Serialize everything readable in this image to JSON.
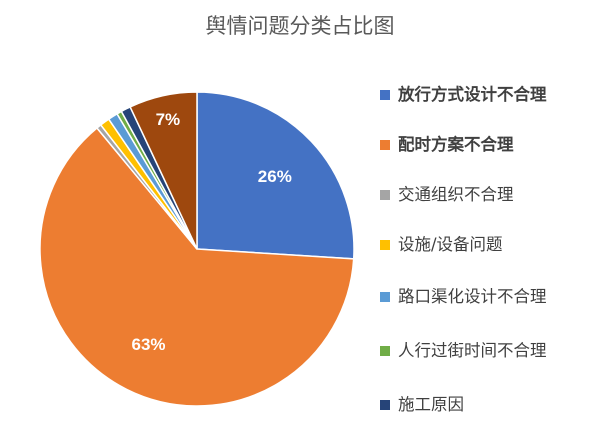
{
  "chart_data": {
    "type": "pie",
    "title": "舆情问题分类占比图",
    "start_angle": "top, clockwise",
    "legend_placement": "right",
    "slices": [
      {
        "label": "放行方式设计不合理",
        "value": 26,
        "data_label": "26%",
        "color": "#4472C4",
        "legend_bold": true
      },
      {
        "label": "配时方案不合理",
        "value": 63,
        "data_label": "63%",
        "color": "#ED7D31",
        "legend_bold": true
      },
      {
        "label": "交通组织不合理",
        "value": 0.5,
        "data_label": "",
        "color": "#A5A5A5",
        "legend_bold": false
      },
      {
        "label": "设施/设备问题",
        "value": 1,
        "data_label": "",
        "color": "#FFC000",
        "legend_bold": false
      },
      {
        "label": "路口渠化设计不合理",
        "value": 1,
        "data_label": "",
        "color": "#5B9BD5",
        "legend_bold": false
      },
      {
        "label": "人行过街时间不合理",
        "value": 0.5,
        "data_label": "",
        "color": "#70AD47",
        "legend_bold": false
      },
      {
        "label": "施工原因",
        "value": 1,
        "data_label": "",
        "color": "#264478",
        "legend_bold": false
      },
      {
        "label": "",
        "value": 7,
        "data_label": "7%",
        "color": "#9E480E",
        "legend_bold": false
      }
    ]
  }
}
